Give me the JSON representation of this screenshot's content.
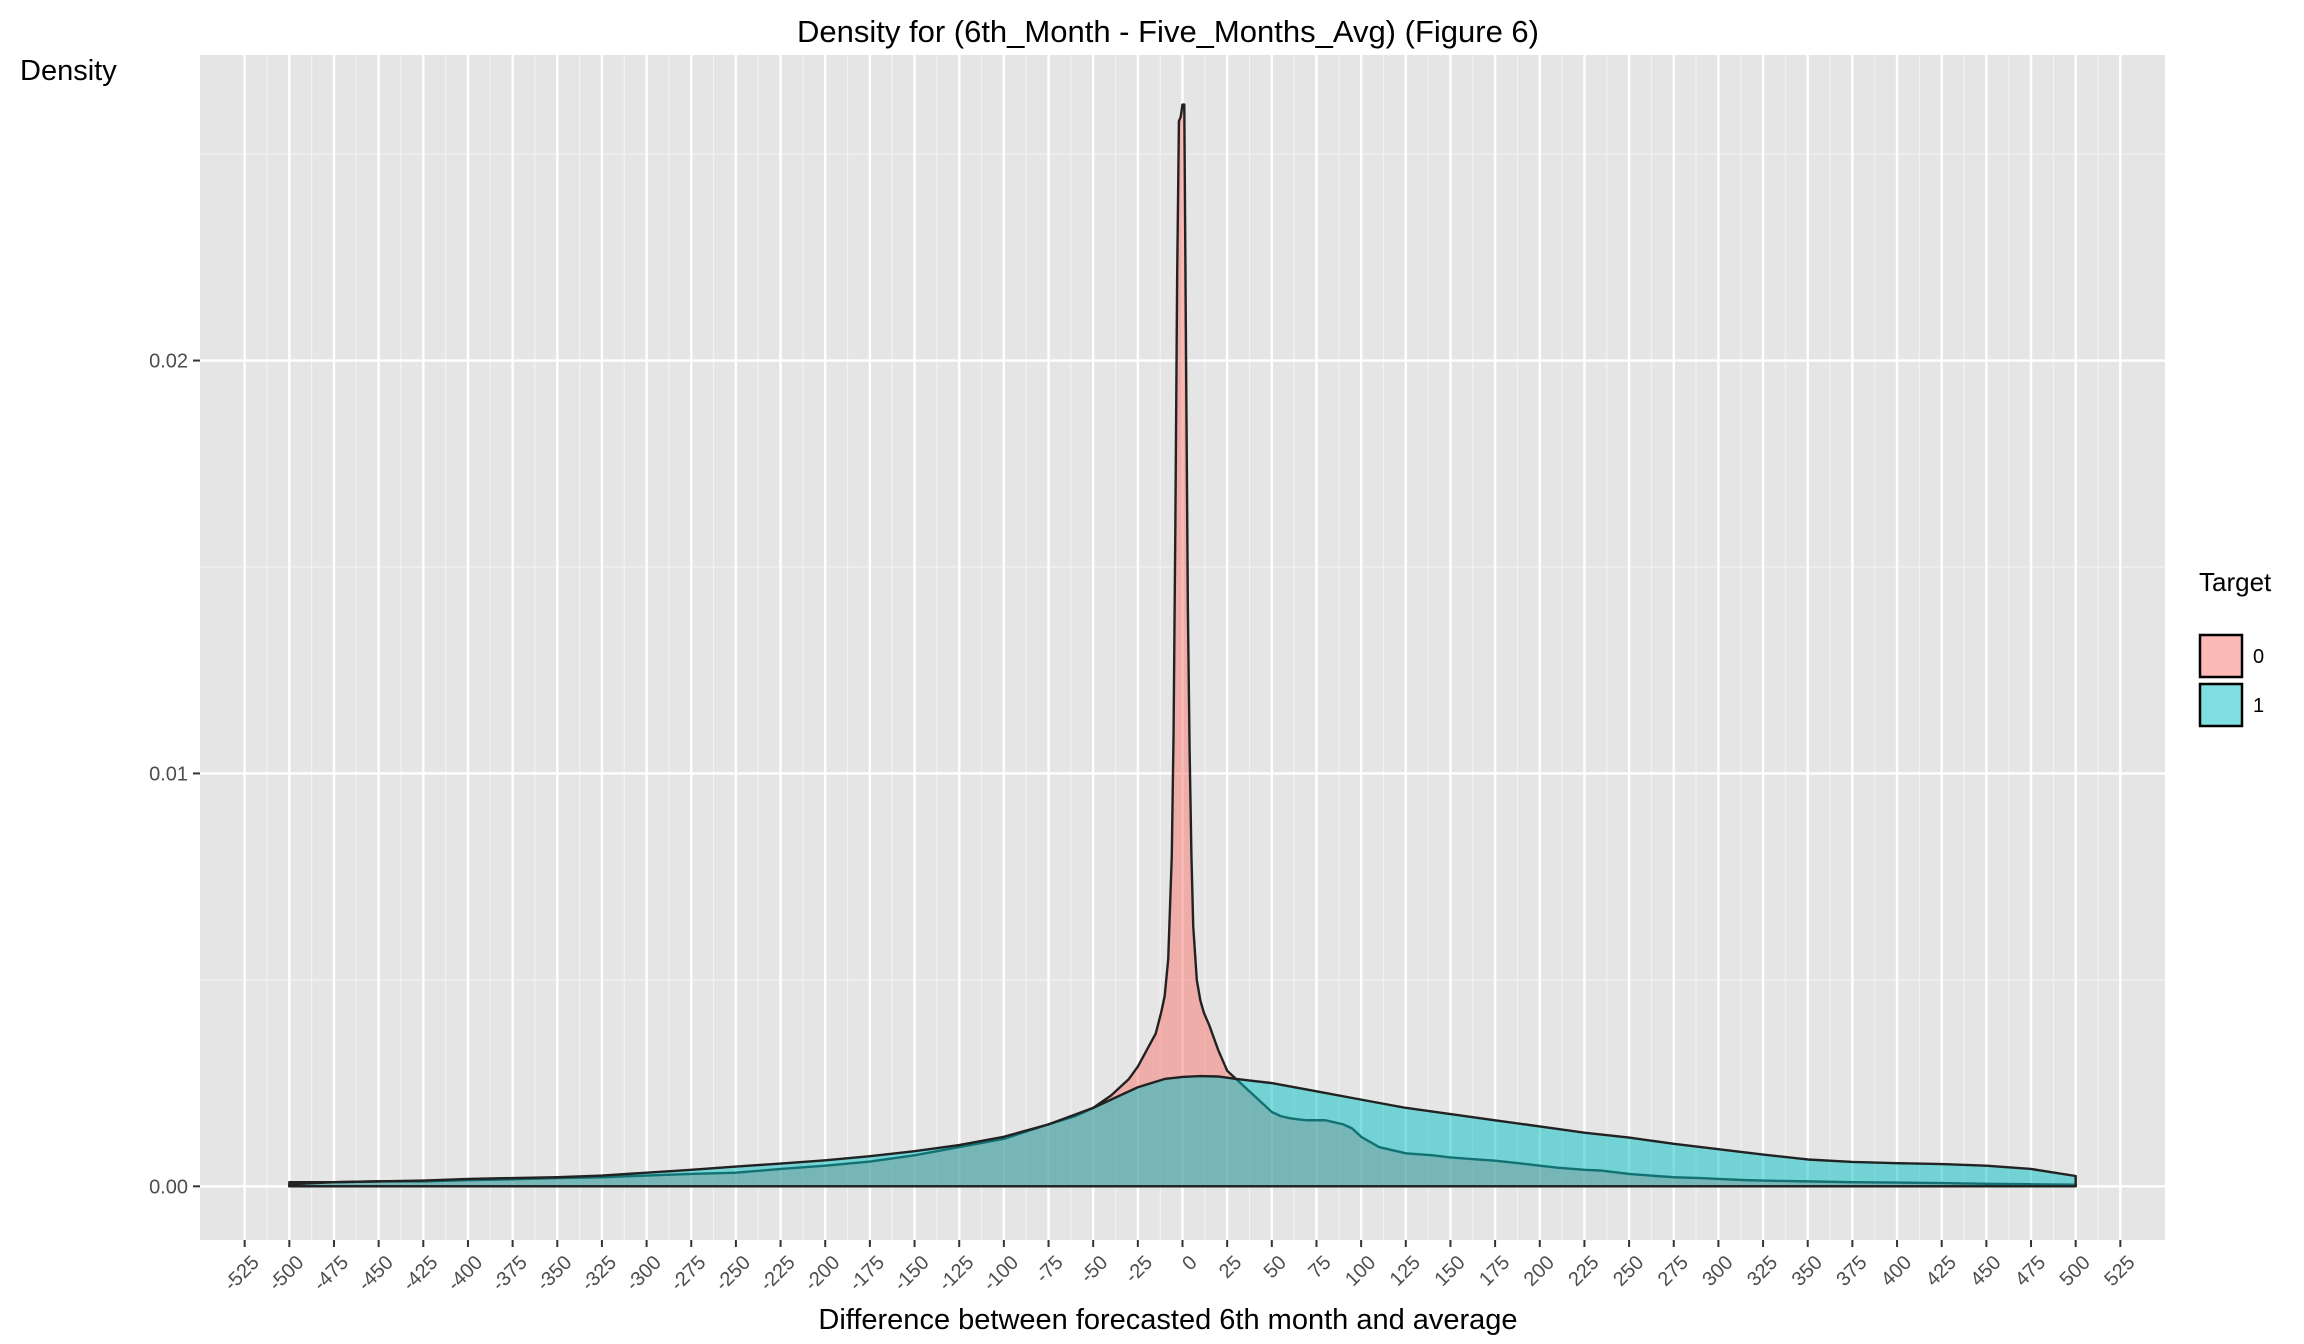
{
  "chart_data": {
    "type": "area",
    "title": "Density for (6th_Month - Five_Months_Avg) (Figure 6)",
    "xlabel": "Difference between forecasted 6th month and average",
    "ylabel": "Density",
    "xlim": [
      -550,
      550
    ],
    "ylim": [
      -0.0013,
      0.0274
    ],
    "x_ticks": [
      -525,
      -500,
      -475,
      -450,
      -425,
      -400,
      -375,
      -350,
      -325,
      -300,
      -275,
      -250,
      -225,
      -200,
      -175,
      -150,
      -125,
      -100,
      -75,
      -50,
      -25,
      0,
      25,
      50,
      75,
      100,
      125,
      150,
      175,
      200,
      225,
      250,
      275,
      300,
      325,
      350,
      375,
      400,
      425,
      450,
      475,
      500,
      525
    ],
    "y_ticks": [
      0,
      0.01,
      0.02
    ],
    "y_tick_labels": [
      "0.00",
      "0.01",
      "0.02"
    ],
    "grid": true,
    "legend": {
      "title": "Target",
      "position": "right",
      "entries": [
        {
          "label": "0",
          "color": "#f8766d"
        },
        {
          "label": "1",
          "color": "#00bfc4"
        }
      ]
    },
    "series": [
      {
        "name": "0",
        "color": "#f8766d",
        "x": [
          -500,
          -475,
          -450,
          -425,
          -400,
          -375,
          -350,
          -325,
          -300,
          -275,
          -250,
          -225,
          -200,
          -175,
          -150,
          -125,
          -100,
          -75,
          -60,
          -50,
          -40,
          -30,
          -25,
          -20,
          -15,
          -12,
          -10,
          -8,
          -6,
          -5,
          -4,
          -3,
          -2,
          -1,
          0,
          1,
          2,
          3,
          4,
          5,
          6,
          8,
          10,
          12,
          15,
          20,
          25,
          30,
          35,
          40,
          45,
          50,
          55,
          60,
          65,
          70,
          75,
          80,
          85,
          90,
          95,
          100,
          110,
          125,
          140,
          150,
          165,
          175,
          190,
          200,
          210,
          225,
          235,
          250,
          265,
          275,
          290,
          300,
          315,
          325,
          335,
          350,
          375,
          400,
          425,
          450,
          475,
          500
        ],
        "values": [
          0.0001,
          0.0001,
          0.00012,
          0.00012,
          0.00015,
          0.00017,
          0.0002,
          0.00022,
          0.00026,
          0.0003,
          0.00033,
          0.00042,
          0.0005,
          0.0006,
          0.00075,
          0.00095,
          0.00115,
          0.0015,
          0.0017,
          0.0019,
          0.0022,
          0.0026,
          0.0029,
          0.0033,
          0.0037,
          0.0042,
          0.0046,
          0.0055,
          0.008,
          0.011,
          0.016,
          0.022,
          0.0258,
          0.0259,
          0.0262,
          0.0262,
          0.02,
          0.014,
          0.0105,
          0.008,
          0.0063,
          0.005,
          0.0045,
          0.0042,
          0.0039,
          0.0033,
          0.0028,
          0.0026,
          0.0024,
          0.0022,
          0.002,
          0.0018,
          0.0017,
          0.00165,
          0.00162,
          0.0016,
          0.0016,
          0.0016,
          0.00155,
          0.0015,
          0.0014,
          0.0012,
          0.00095,
          0.0008,
          0.00075,
          0.0007,
          0.00065,
          0.00062,
          0.00055,
          0.0005,
          0.00045,
          0.0004,
          0.00038,
          0.0003,
          0.00025,
          0.00022,
          0.0002,
          0.00018,
          0.00015,
          0.00014,
          0.00013,
          0.00012,
          0.0001,
          9e-05,
          8e-05,
          6e-05,
          5e-05,
          4e-05
        ]
      },
      {
        "name": "1",
        "color": "#00bfc4",
        "x": [
          -500,
          -475,
          -450,
          -425,
          -400,
          -375,
          -350,
          -325,
          -300,
          -275,
          -250,
          -225,
          -200,
          -175,
          -150,
          -125,
          -100,
          -75,
          -50,
          -25,
          -10,
          0,
          10,
          20,
          30,
          50,
          75,
          100,
          125,
          150,
          175,
          200,
          225,
          250,
          275,
          300,
          325,
          350,
          375,
          400,
          425,
          450,
          475,
          500
        ],
        "values": [
          5e-05,
          0.0001,
          0.00012,
          0.00014,
          0.00018,
          0.0002,
          0.00022,
          0.00026,
          0.00033,
          0.0004,
          0.00048,
          0.00055,
          0.00063,
          0.00073,
          0.00085,
          0.001,
          0.0012,
          0.0015,
          0.0019,
          0.0024,
          0.0026,
          0.00265,
          0.00267,
          0.00266,
          0.0026,
          0.0025,
          0.0023,
          0.0021,
          0.0019,
          0.00175,
          0.0016,
          0.00145,
          0.0013,
          0.00118,
          0.00103,
          0.0009,
          0.00077,
          0.00065,
          0.00059,
          0.00056,
          0.00054,
          0.0005,
          0.00042,
          0.00025
        ]
      }
    ]
  }
}
